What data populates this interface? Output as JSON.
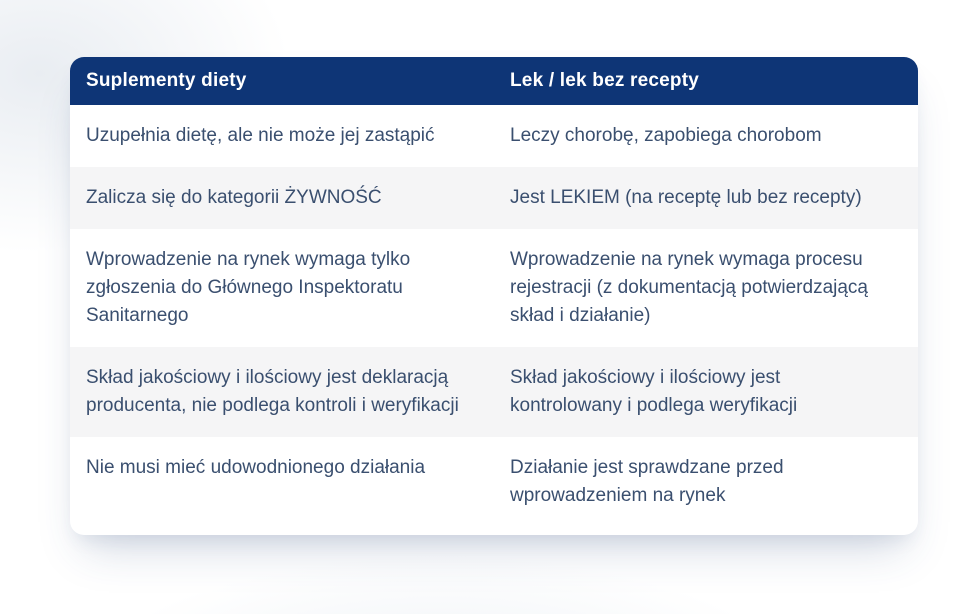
{
  "table": {
    "headers": [
      "Suplementy diety",
      "Lek / lek bez recepty"
    ],
    "rows": [
      {
        "supplement": "Uzupełnia dietę, ale nie może jej zastąpić",
        "medicine": "Leczy chorobę, zapobiega chorobom"
      },
      {
        "supplement": "Zalicza się do kategorii ŻYWNOŚĆ",
        "medicine": "Jest LEKIEM (na receptę lub bez recepty)"
      },
      {
        "supplement": "Wprowadzenie na rynek wymaga tylko zgłoszenia do Głównego Inspektoratu Sanitarnego",
        "medicine": "Wprowadzenie na rynek wymaga procesu rejestracji (z dokumentacją potwierdzającą skład i działanie)"
      },
      {
        "supplement": "Skład jakościowy i ilościowy jest deklaracją producenta, nie podlega kontroli i weryfikacji",
        "medicine": "Skład jakościowy i ilościowy jest kontrolowany i podlega weryfikacji"
      },
      {
        "supplement": "Nie musi mieć udowodnionego działania",
        "medicine": "Działanie jest sprawdzane przed wprowadzeniem na rynek"
      }
    ]
  },
  "colors": {
    "header_background": "#0E3576",
    "header_text": "#FFFFFF",
    "row_stripe": "#F5F5F6",
    "body_text": "#3A4F6F",
    "card_background": "#FFFFFF"
  }
}
